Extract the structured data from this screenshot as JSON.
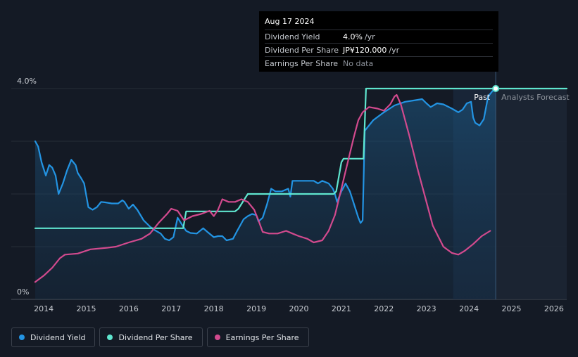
{
  "tooltip": {
    "date": "Aug 17 2024",
    "rows": [
      {
        "name": "Dividend Yield",
        "value": "4.0%",
        "unit": "/yr"
      },
      {
        "name": "Dividend Per Share",
        "value": "JP¥120.000",
        "unit": "/yr"
      },
      {
        "name": "Earnings Per Share",
        "value": "No data",
        "unit": ""
      }
    ]
  },
  "labels": {
    "past": "Past",
    "forecast": "Analysts Forecast"
  },
  "legend": [
    {
      "label": "Dividend Yield",
      "color": "#2394e3"
    },
    {
      "label": "Dividend Per Share",
      "color": "#5fe6cf"
    },
    {
      "label": "Earnings Per Share",
      "color": "#d24a8e"
    }
  ],
  "chart_data": {
    "type": "line",
    "xlim": [
      2013.8,
      2026.3
    ],
    "ylim": [
      0,
      4.0
    ],
    "y_tick_labels": [
      {
        "value": 4.0,
        "label": "4.0%"
      },
      {
        "value": 0,
        "label": "0%"
      }
    ],
    "x_ticks": [
      2014,
      2015,
      2016,
      2017,
      2018,
      2019,
      2020,
      2021,
      2022,
      2023,
      2024,
      2025,
      2026
    ],
    "past_until": 2024.63,
    "forecast_shade_from": 2023.63,
    "grid": true,
    "series": [
      {
        "name": "Dividend Yield",
        "color": "#2394e3",
        "x": [
          2013.8,
          2013.87,
          2013.95,
          2014.05,
          2014.13,
          2014.2,
          2014.28,
          2014.35,
          2014.45,
          2014.55,
          2014.65,
          2014.75,
          2014.8,
          2014.88,
          2014.95,
          2015.05,
          2015.15,
          2015.25,
          2015.35,
          2015.45,
          2015.6,
          2015.75,
          2015.85,
          2015.9,
          2016.0,
          2016.1,
          2016.2,
          2016.35,
          2016.5,
          2016.6,
          2016.75,
          2016.85,
          2016.95,
          2017.05,
          2017.15,
          2017.25,
          2017.35,
          2017.45,
          2017.6,
          2017.75,
          2017.85,
          2018.0,
          2018.1,
          2018.2,
          2018.3,
          2018.45,
          2018.55,
          2018.7,
          2018.8,
          2018.9,
          2019.0,
          2019.05,
          2019.15,
          2019.25,
          2019.35,
          2019.45,
          2019.6,
          2019.75,
          2019.8,
          2019.85,
          2020.0,
          2020.2,
          2020.35,
          2020.45,
          2020.55,
          2020.7,
          2020.8,
          2020.85,
          2020.9,
          2021.0,
          2021.1,
          2021.2,
          2021.3,
          2021.4,
          2021.45,
          2021.5,
          2021.55,
          2021.6,
          2021.75,
          2022.0,
          2022.25,
          2022.5,
          2022.75,
          2022.9,
          2023.0,
          2023.1,
          2023.25,
          2023.4,
          2023.6,
          2023.75,
          2023.85,
          2023.95,
          2024.05,
          2024.1,
          2024.15,
          2024.25,
          2024.35,
          2024.45,
          2024.55,
          2024.63
        ],
        "y": [
          3.0,
          2.9,
          2.6,
          2.35,
          2.55,
          2.5,
          2.35,
          2.0,
          2.2,
          2.45,
          2.65,
          2.55,
          2.4,
          2.3,
          2.2,
          1.75,
          1.7,
          1.75,
          1.85,
          1.84,
          1.82,
          1.82,
          1.88,
          1.85,
          1.72,
          1.8,
          1.7,
          1.5,
          1.38,
          1.32,
          1.25,
          1.15,
          1.12,
          1.18,
          1.55,
          1.42,
          1.3,
          1.26,
          1.25,
          1.35,
          1.28,
          1.18,
          1.2,
          1.2,
          1.12,
          1.15,
          1.3,
          1.52,
          1.58,
          1.62,
          1.6,
          1.48,
          1.55,
          1.8,
          2.1,
          2.05,
          2.05,
          2.1,
          1.95,
          2.25,
          2.25,
          2.25,
          2.25,
          2.2,
          2.25,
          2.2,
          2.1,
          2.0,
          1.85,
          2.05,
          2.2,
          2.05,
          1.8,
          1.55,
          1.45,
          1.5,
          3.2,
          3.25,
          3.4,
          3.55,
          3.68,
          3.75,
          3.78,
          3.8,
          3.72,
          3.65,
          3.72,
          3.7,
          3.62,
          3.55,
          3.6,
          3.72,
          3.75,
          3.45,
          3.35,
          3.3,
          3.42,
          3.85,
          3.95,
          4.0
        ]
      },
      {
        "name": "Dividend Per Share",
        "color": "#5fe6cf",
        "x": [
          2013.8,
          2017.28,
          2017.35,
          2018.5,
          2018.58,
          2018.72,
          2018.8,
          2020.82,
          2020.88,
          2021.0,
          2021.05,
          2021.52,
          2021.58,
          2024.63,
          2026.3
        ],
        "y": [
          1.35,
          1.35,
          1.67,
          1.67,
          1.72,
          1.9,
          2.0,
          2.0,
          2.05,
          2.6,
          2.67,
          2.67,
          4.0,
          4.0,
          4.0
        ]
      },
      {
        "name": "Earnings Per Share",
        "color": "#d24a8e",
        "x": [
          2013.8,
          2014.0,
          2014.2,
          2014.38,
          2014.5,
          2014.8,
          2015.1,
          2015.5,
          2015.7,
          2016.0,
          2016.3,
          2016.5,
          2016.7,
          2016.9,
          2017.0,
          2017.15,
          2017.3,
          2017.5,
          2017.7,
          2017.9,
          2018.0,
          2018.1,
          2018.2,
          2018.35,
          2018.5,
          2018.65,
          2018.8,
          2018.95,
          2019.05,
          2019.15,
          2019.3,
          2019.5,
          2019.7,
          2019.85,
          2020.0,
          2020.2,
          2020.35,
          2020.55,
          2020.7,
          2020.85,
          2021.0,
          2021.15,
          2021.3,
          2021.4,
          2021.5,
          2021.65,
          2021.85,
          2022.0,
          2022.15,
          2022.25,
          2022.3,
          2022.4,
          2022.6,
          2022.8,
          2023.0,
          2023.15,
          2023.4,
          2023.6,
          2023.75,
          2023.9,
          2024.1,
          2024.3,
          2024.5
        ],
        "y": [
          0.33,
          0.45,
          0.6,
          0.78,
          0.85,
          0.87,
          0.95,
          0.98,
          1.0,
          1.08,
          1.15,
          1.25,
          1.45,
          1.62,
          1.72,
          1.68,
          1.5,
          1.58,
          1.62,
          1.68,
          1.58,
          1.7,
          1.9,
          1.85,
          1.85,
          1.9,
          1.85,
          1.7,
          1.5,
          1.28,
          1.25,
          1.25,
          1.3,
          1.25,
          1.2,
          1.15,
          1.08,
          1.12,
          1.3,
          1.6,
          2.1,
          2.6,
          3.1,
          3.4,
          3.55,
          3.65,
          3.62,
          3.58,
          3.7,
          3.85,
          3.88,
          3.7,
          3.1,
          2.45,
          1.85,
          1.4,
          1.0,
          0.88,
          0.85,
          0.92,
          1.05,
          1.2,
          1.3
        ]
      }
    ]
  }
}
